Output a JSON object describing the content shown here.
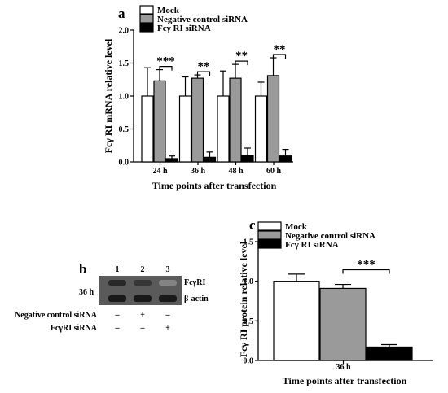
{
  "chart_data": [
    {
      "panel_label": "a",
      "type": "bar",
      "categories": [
        "24 h",
        "36 h",
        "48 h",
        "60 h"
      ],
      "series": [
        {
          "name": "Mock",
          "values": [
            1.0,
            1.0,
            1.0,
            1.0
          ],
          "errors": [
            0.43,
            0.29,
            0.38,
            0.21
          ],
          "color": "#ffffff"
        },
        {
          "name": "Negative control siRNA",
          "values": [
            1.23,
            1.27,
            1.27,
            1.31
          ],
          "errors": [
            0.17,
            0.05,
            0.21,
            0.27
          ],
          "color": "#9a9a9a"
        },
        {
          "name": "Fcγ RI siRNA",
          "values": [
            0.05,
            0.07,
            0.1,
            0.09
          ],
          "errors": [
            0.04,
            0.08,
            0.11,
            0.1
          ],
          "color": "#000000"
        }
      ],
      "significance": [
        "***",
        "**",
        "**",
        "**"
      ],
      "xlabel": "Time points after transfection",
      "ylabel": "Fcγ RI mRNA relative level",
      "ylim": [
        0,
        2.0
      ],
      "yticks": [
        "0.0",
        "0.5",
        "1.0",
        "1.5",
        "2.0"
      ],
      "legend": "top-left",
      "grid": false
    },
    {
      "panel_label": "c",
      "type": "bar",
      "categories": [
        "36 h"
      ],
      "series": [
        {
          "name": "Mock",
          "values": [
            1.0
          ],
          "errors": [
            0.09
          ],
          "color": "#ffffff"
        },
        {
          "name": "Negative control siRNA",
          "values": [
            0.91
          ],
          "errors": [
            0.05
          ],
          "color": "#9a9a9a"
        },
        {
          "name": "Fcγ RI siRNA",
          "values": [
            0.17
          ],
          "errors": [
            0.03
          ],
          "color": "#000000"
        }
      ],
      "significance": [
        "***"
      ],
      "xlabel": "Time points after transfection",
      "ylabel": "Fcγ RI protein relative level",
      "ylim": [
        0,
        1.5
      ],
      "yticks": [
        "0.0",
        "0.5",
        "1.0",
        "1.5"
      ],
      "legend": "top-left",
      "grid": false
    }
  ],
  "blot": {
    "panel_label": "b",
    "lanes": [
      "1",
      "2",
      "3"
    ],
    "time_label": "36 h",
    "band_labels": [
      "FcγRI",
      "β-actin"
    ],
    "fcgri_band_intensity": [
      1.0,
      0.9,
      0.35
    ],
    "actin_band_intensity": [
      1.0,
      1.0,
      1.0
    ],
    "rows": [
      {
        "label": "Negative control siRNA",
        "marks": [
          "–",
          "+",
          "–"
        ]
      },
      {
        "label": "FcγRI siRNA",
        "marks": [
          "–",
          "–",
          "+"
        ]
      }
    ]
  }
}
